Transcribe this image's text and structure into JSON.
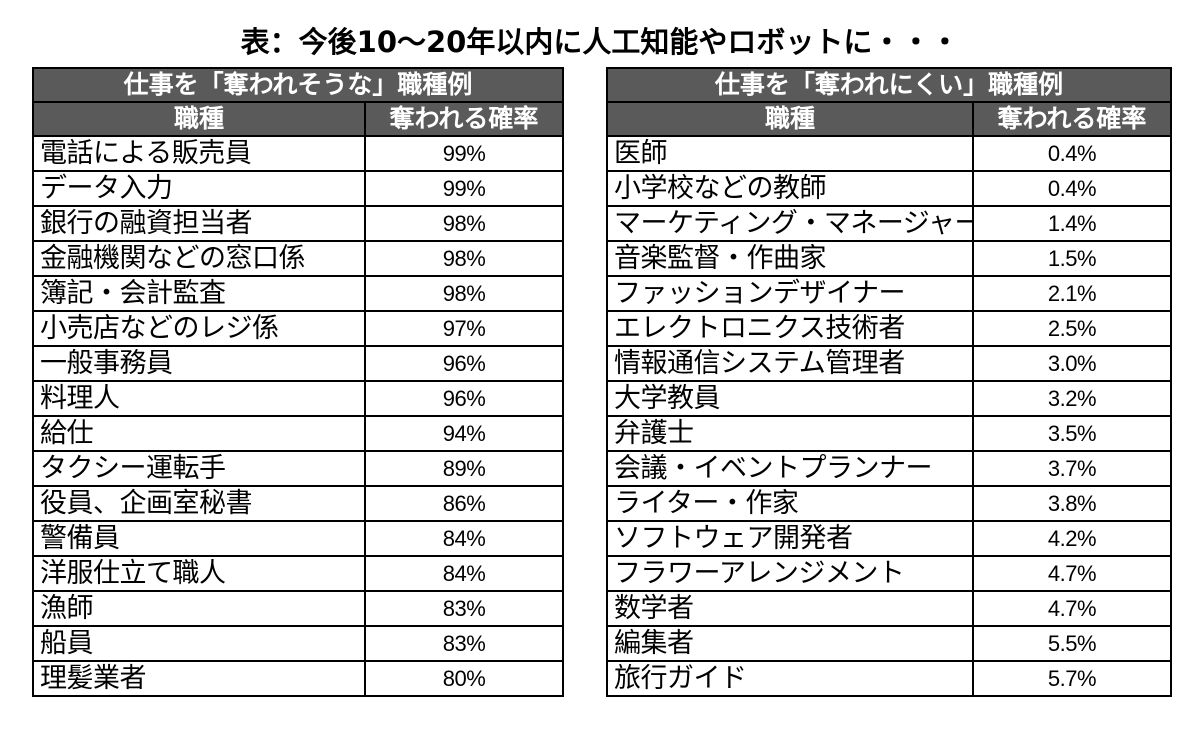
{
  "title": "表：今後10～20年以内に人工知能やロボットに・・・",
  "tables": [
    {
      "caption": "仕事を「奪われそうな」職種例",
      "col_job": "職種",
      "col_prob": "奪われる確率",
      "rows": [
        {
          "job": "電話による販売員",
          "prob": "99%"
        },
        {
          "job": "データ入力",
          "prob": "99%"
        },
        {
          "job": "銀行の融資担当者",
          "prob": "98%"
        },
        {
          "job": "金融機関などの窓口係",
          "prob": "98%"
        },
        {
          "job": "簿記・会計監査",
          "prob": "98%"
        },
        {
          "job": "小売店などのレジ係",
          "prob": "97%"
        },
        {
          "job": "一般事務員",
          "prob": "96%"
        },
        {
          "job": "料理人",
          "prob": "96%"
        },
        {
          "job": "給仕",
          "prob": "94%"
        },
        {
          "job": "タクシー運転手",
          "prob": "89%"
        },
        {
          "job": "役員、企画室秘書",
          "prob": "86%"
        },
        {
          "job": "警備員",
          "prob": "84%"
        },
        {
          "job": "洋服仕立て職人",
          "prob": "84%"
        },
        {
          "job": "漁師",
          "prob": "83%"
        },
        {
          "job": "船員",
          "prob": "83%"
        },
        {
          "job": "理髪業者",
          "prob": "80%"
        }
      ]
    },
    {
      "caption": "仕事を「奪われにくい」職種例",
      "col_job": "職種",
      "col_prob": "奪われる確率",
      "rows": [
        {
          "job": "医師",
          "prob": "0.4%"
        },
        {
          "job": "小学校などの教師",
          "prob": "0.4%"
        },
        {
          "job": "マーケティング・マネージャー",
          "prob": "1.4%"
        },
        {
          "job": "音楽監督・作曲家",
          "prob": "1.5%"
        },
        {
          "job": "ファッションデザイナー",
          "prob": "2.1%"
        },
        {
          "job": "エレクトロニクス技術者",
          "prob": "2.5%"
        },
        {
          "job": "情報通信システム管理者",
          "prob": "3.0%"
        },
        {
          "job": "大学教員",
          "prob": "3.2%"
        },
        {
          "job": "弁護士",
          "prob": "3.5%"
        },
        {
          "job": "会議・イベントプランナー",
          "prob": "3.7%"
        },
        {
          "job": "ライター・作家",
          "prob": "3.8%"
        },
        {
          "job": "ソフトウェア開発者",
          "prob": "4.2%"
        },
        {
          "job": "フラワーアレンジメント",
          "prob": "4.7%"
        },
        {
          "job": "数学者",
          "prob": "4.7%"
        },
        {
          "job": "編集者",
          "prob": "5.5%"
        },
        {
          "job": "旅行ガイド",
          "prob": "5.7%"
        }
      ]
    }
  ]
}
